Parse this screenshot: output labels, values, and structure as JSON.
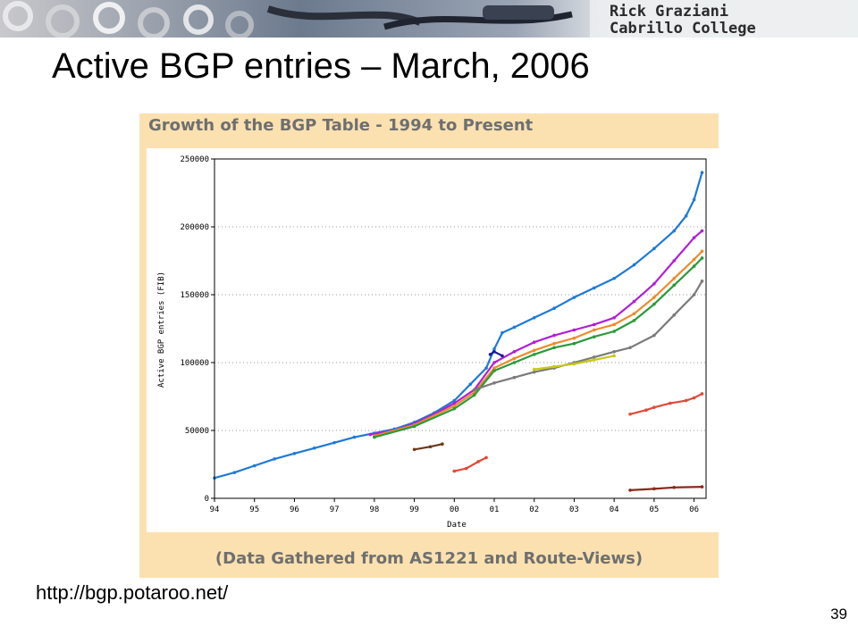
{
  "banner": {
    "author_name": "Rick Graziani",
    "institution": "Cabrillo College"
  },
  "slide": {
    "title": "Active BGP entries – March, 2006",
    "url": "http://bgp.potaroo.net/",
    "page_number": "39"
  },
  "chart_data": {
    "type": "scatter",
    "title": "Growth of the BGP Table - 1994 to Present",
    "footer": "(Data Gathered from AS1221 and Route-Views)",
    "xlabel": "Date",
    "ylabel": "Active BGP entries (FIB)",
    "x_ticks": [
      "94",
      "95",
      "96",
      "97",
      "98",
      "99",
      "00",
      "01",
      "02",
      "03",
      "04",
      "05",
      "06"
    ],
    "y_ticks": [
      "0",
      "50000",
      "100000",
      "150000",
      "200000",
      "250000"
    ],
    "xlim": [
      1994,
      2006.3
    ],
    "ylim": [
      0,
      250000
    ],
    "grid": true,
    "series": [
      {
        "color": "#1f7ad6",
        "x": [
          1994.0,
          1994.5,
          1995.0,
          1995.5,
          1996.0,
          1996.5,
          1997.0,
          1997.5,
          1998.0,
          1998.5,
          1999.0,
          1999.5,
          2000.0,
          2000.4,
          2000.8,
          2001.0,
          2001.2,
          2001.5,
          2002.0,
          2002.5,
          2003.0,
          2003.5,
          2004.0,
          2004.5,
          2005.0,
          2005.5,
          2005.8,
          2006.0,
          2006.2
        ],
        "values": [
          15000,
          19000,
          24000,
          29000,
          33000,
          37000,
          41000,
          45000,
          48000,
          51000,
          56000,
          63000,
          72000,
          84000,
          96000,
          110000,
          122000,
          126000,
          133000,
          140000,
          148000,
          155000,
          162000,
          172000,
          184000,
          197000,
          208000,
          220000,
          240000
        ]
      },
      {
        "color": "#b01fd6",
        "x": [
          1997.9,
          1998.5,
          1999.0,
          1999.5,
          2000.0,
          2000.5,
          2001.0,
          2001.5,
          2002.0,
          2002.5,
          2003.0,
          2003.5,
          2004.0,
          2004.5,
          2005.0,
          2005.5,
          2006.0,
          2006.2
        ],
        "values": [
          47000,
          50000,
          55000,
          62000,
          70000,
          80000,
          100000,
          108000,
          115000,
          120000,
          124000,
          128000,
          133000,
          145000,
          158000,
          175000,
          192000,
          197000
        ]
      },
      {
        "color": "#f08a2a",
        "x": [
          1998.0,
          1999.0,
          2000.0,
          2000.5,
          2001.0,
          2001.5,
          2002.0,
          2002.5,
          2003.0,
          2003.5,
          2004.0,
          2004.5,
          2005.0,
          2005.5,
          2006.0,
          2006.2
        ],
        "values": [
          46000,
          54000,
          68000,
          78000,
          96000,
          103000,
          109000,
          114000,
          118000,
          124000,
          128000,
          136000,
          148000,
          162000,
          176000,
          182000
        ]
      },
      {
        "color": "#2a9a3a",
        "x": [
          1998.0,
          1999.0,
          2000.0,
          2000.5,
          2001.0,
          2001.5,
          2002.0,
          2002.5,
          2003.0,
          2003.5,
          2004.0,
          2004.5,
          2005.0,
          2005.5,
          2006.0,
          2006.2
        ],
        "values": [
          45000,
          53000,
          66000,
          76000,
          94000,
          100000,
          106000,
          111000,
          114000,
          119000,
          123000,
          131000,
          143000,
          157000,
          171000,
          177000
        ]
      },
      {
        "color": "#7a7a7a",
        "x": [
          2000.5,
          2001.0,
          2001.5,
          2002.0,
          2002.5,
          2003.0,
          2003.5,
          2004.0,
          2004.4,
          2005.0,
          2005.5,
          2006.0,
          2006.2
        ],
        "values": [
          80000,
          85000,
          89000,
          93000,
          96000,
          100000,
          104000,
          108000,
          111000,
          120000,
          135000,
          150000,
          160000
        ]
      },
      {
        "color": "#e04a3a",
        "x": [
          2004.4,
          2004.8,
          2005.0,
          2005.4,
          2005.8,
          2006.0,
          2006.2
        ],
        "values": [
          62000,
          65000,
          67000,
          70000,
          72000,
          74000,
          77000
        ]
      },
      {
        "color": "#e04a3a",
        "x": [
          2000.0,
          2000.3,
          2000.6,
          2000.8
        ],
        "values": [
          20000,
          22000,
          27000,
          30000
        ]
      },
      {
        "color": "#6a3a1a",
        "x": [
          1999.0,
          1999.4,
          1999.7
        ],
        "values": [
          36000,
          38000,
          40000
        ]
      },
      {
        "color": "#1a1a9a",
        "x": [
          2000.9,
          2001.0,
          2001.2
        ],
        "values": [
          106000,
          108000,
          105000
        ]
      },
      {
        "color": "#8a2a1a",
        "x": [
          2004.4,
          2005.0,
          2005.5,
          2006.2
        ],
        "values": [
          6000,
          7000,
          8000,
          8500
        ]
      },
      {
        "color": "#c8c81a",
        "x": [
          2002.0,
          2002.5,
          2003.0,
          2003.5,
          2004.0
        ],
        "values": [
          95000,
          97000,
          99000,
          102000,
          105000
        ]
      }
    ]
  }
}
